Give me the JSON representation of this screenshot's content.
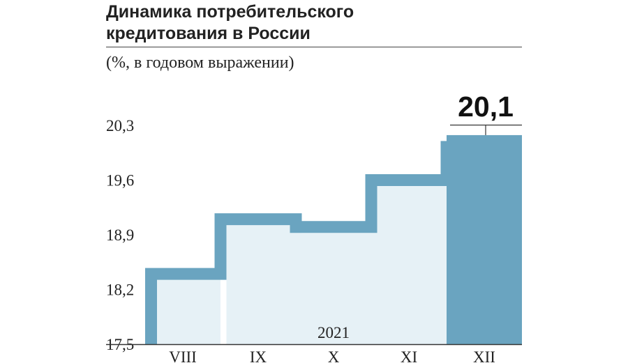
{
  "header": {
    "title_line1": "Динамика потребительского",
    "title_line2": "кредитования в России",
    "subtitle": "(%, в годовом выражении)"
  },
  "chart_data": {
    "type": "bar",
    "title": "Динамика потребительского кредитования в России",
    "subtitle": "(%, в годовом выражении)",
    "x_group_label": "2021",
    "categories": [
      "VIII",
      "IX",
      "X",
      "XI",
      "XII"
    ],
    "values": [
      18.4,
      19.1,
      19.0,
      19.6,
      20.1
    ],
    "highlight": {
      "category": "XII",
      "label": "20,1"
    },
    "yticks": [
      "17,5",
      "18,2",
      "18,9",
      "19,6",
      "20,3"
    ],
    "ylim": [
      17.5,
      20.3
    ],
    "grid": false,
    "legend": "none",
    "colors": {
      "bar": "#6aa4c0",
      "fill": "#e6f1f6",
      "highlight": "#6aa4c0",
      "text": "#222222"
    }
  }
}
